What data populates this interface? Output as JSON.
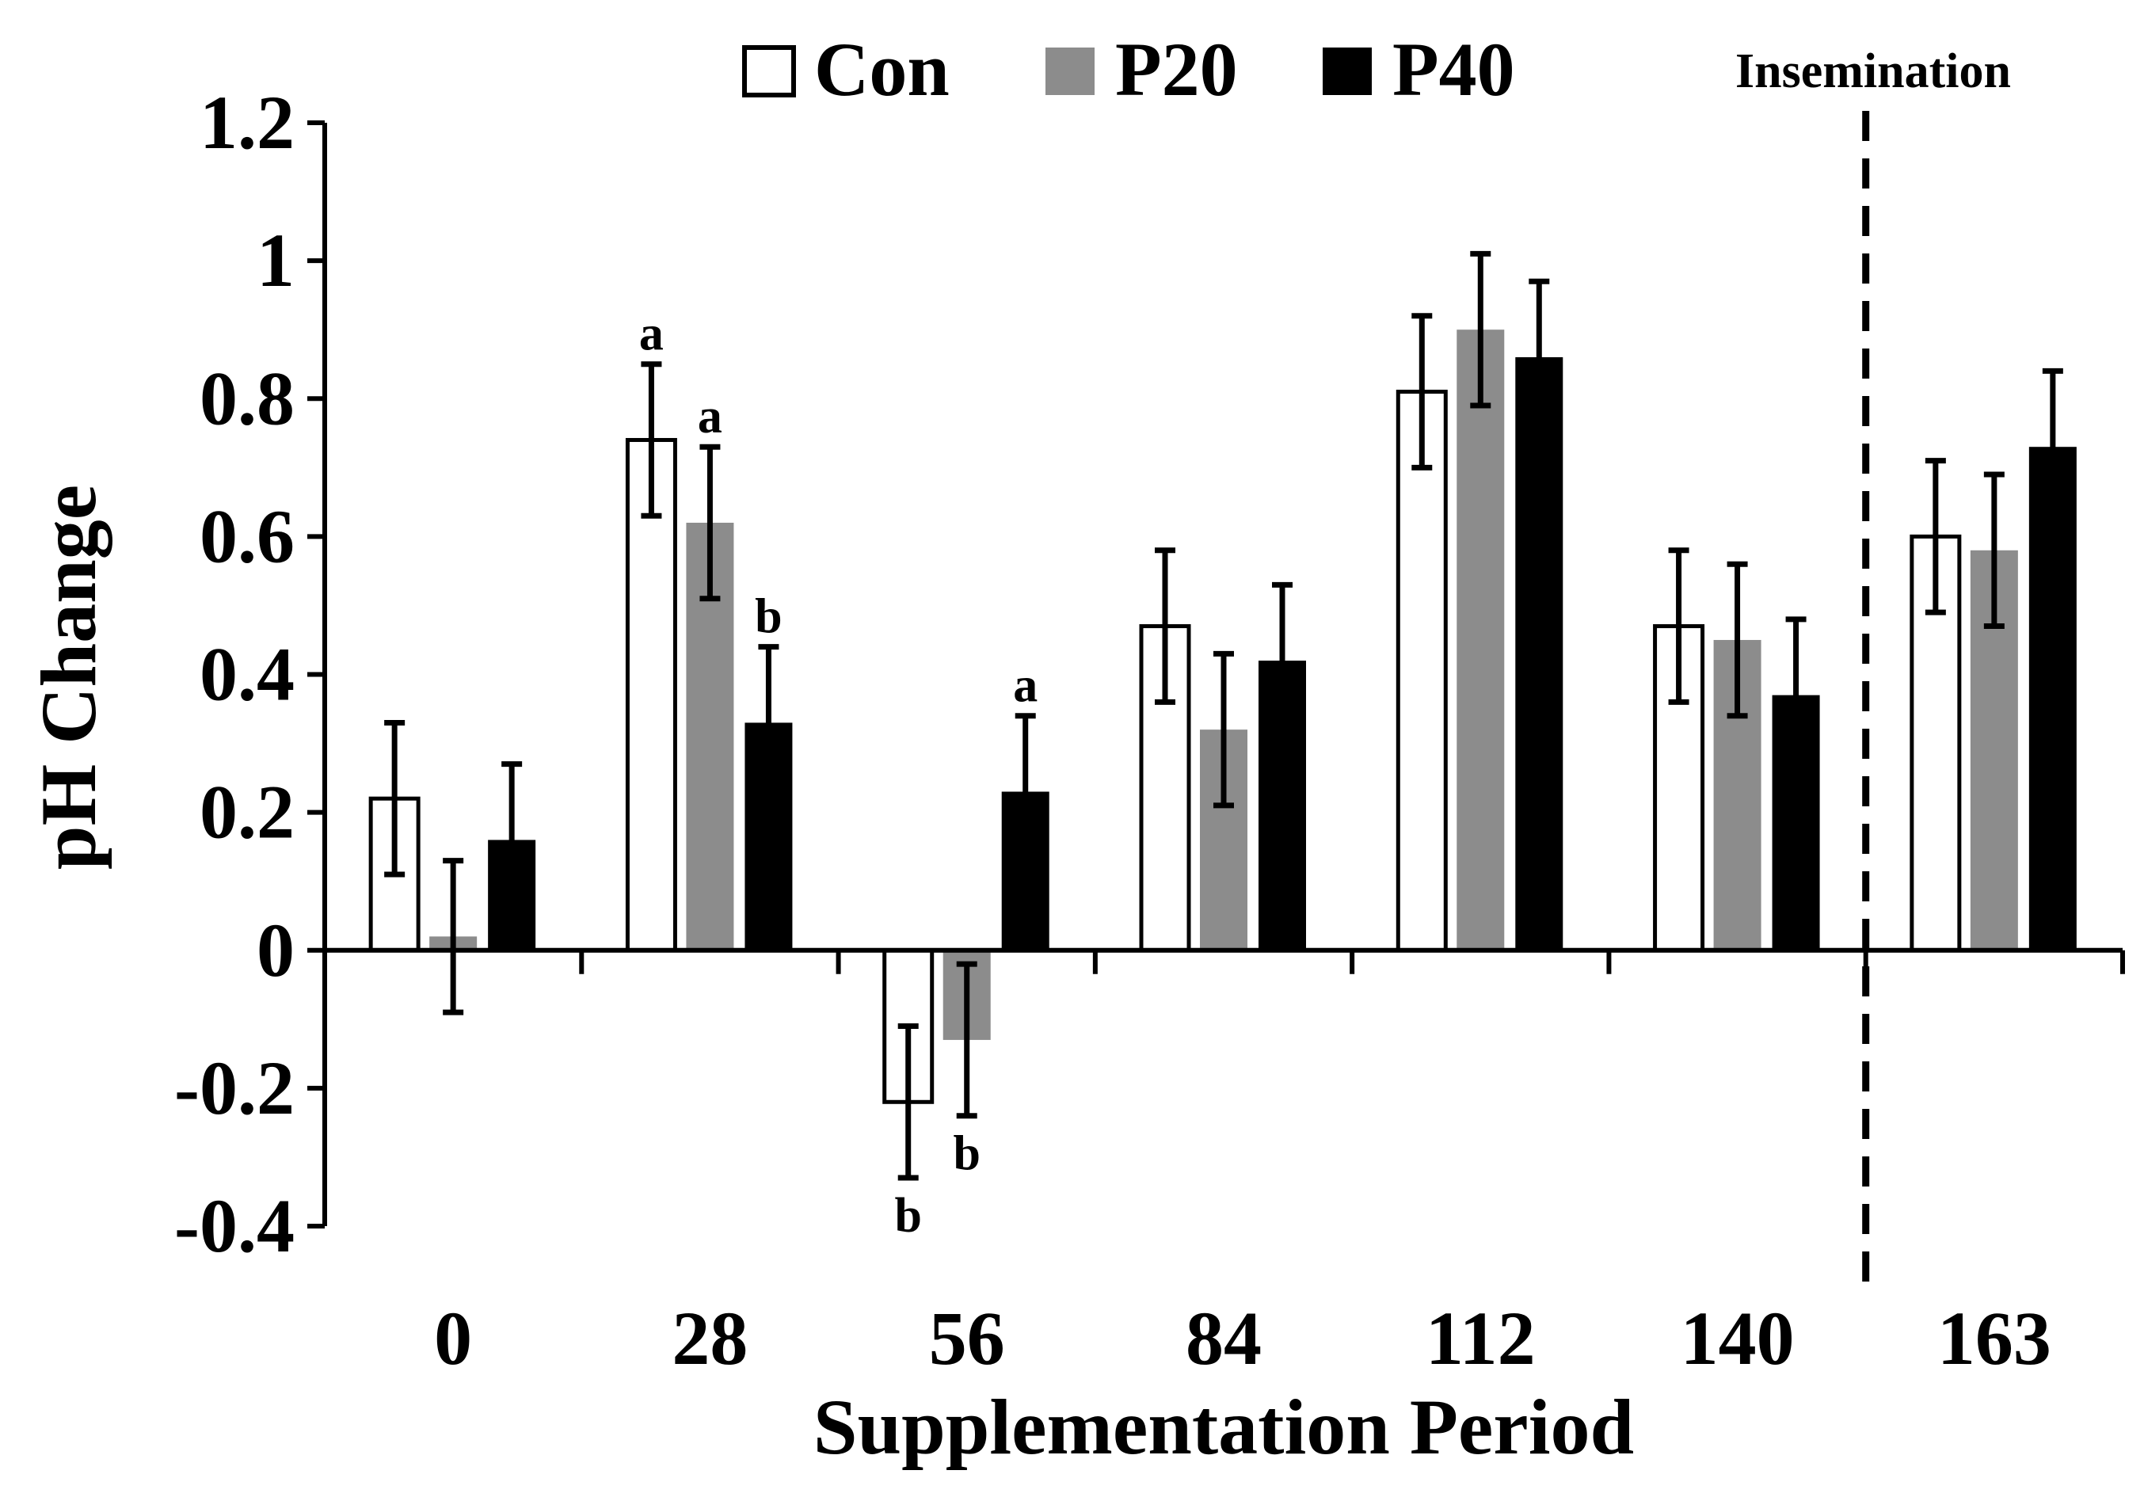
{
  "chart_data": {
    "type": "bar",
    "xlabel": "Supplementation Period",
    "ylabel": "pH Change",
    "ylim": [
      -0.4,
      1.2
    ],
    "yticks": [
      1.2,
      1,
      0.8,
      0.6,
      0.4,
      0.2,
      0,
      -0.2,
      -0.4
    ],
    "yticklabels": [
      "1.2",
      "1",
      "0.8",
      "0.6",
      "0.4",
      "0.2",
      "0",
      "-0.2",
      "-0.4"
    ],
    "categories": [
      "0",
      "28",
      "56",
      "84",
      "112",
      "140",
      "163"
    ],
    "grid": false,
    "legend_position": "top",
    "series": [
      {
        "name": "Con",
        "fill": "#ffffff",
        "stroke": "#000000",
        "values": [
          0.22,
          0.74,
          -0.22,
          0.47,
          0.81,
          0.47,
          0.6
        ],
        "errors": [
          0.11,
          0.11,
          0.11,
          0.11,
          0.11,
          0.11,
          0.11
        ],
        "letters": [
          "",
          "a",
          "b",
          "",
          "",
          "",
          ""
        ]
      },
      {
        "name": "P20",
        "fill": "#8c8c8c",
        "stroke": "#8c8c8c",
        "values": [
          0.02,
          0.62,
          -0.13,
          0.32,
          0.9,
          0.45,
          0.58
        ],
        "errors": [
          0.11,
          0.11,
          0.11,
          0.11,
          0.11,
          0.11,
          0.11
        ],
        "letters": [
          "",
          "a",
          "b",
          "",
          "",
          "",
          ""
        ]
      },
      {
        "name": "P40",
        "fill": "#000000",
        "stroke": "#000000",
        "values": [
          0.16,
          0.33,
          0.23,
          0.42,
          0.86,
          0.37,
          0.73
        ],
        "errors": [
          0.11,
          0.11,
          0.11,
          0.11,
          0.11,
          0.11,
          0.11
        ],
        "letters": [
          "",
          "b",
          "a",
          "",
          "",
          "",
          ""
        ]
      }
    ],
    "annotations": [
      {
        "text": "Insemination",
        "between_categories": [
          "140",
          "163"
        ],
        "style": "dashed-vertical-line"
      }
    ]
  }
}
